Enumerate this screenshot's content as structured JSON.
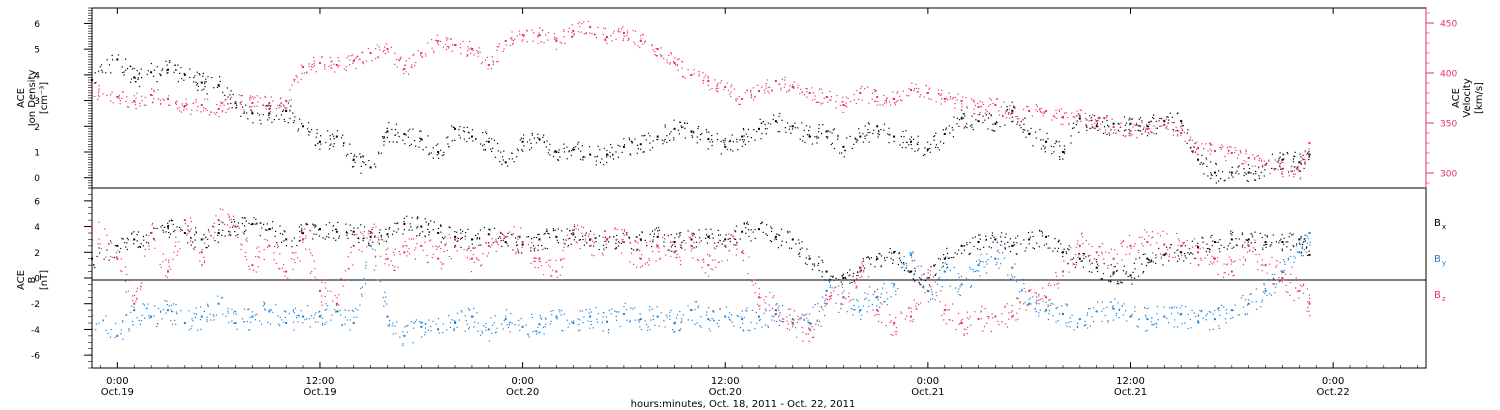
{
  "colors": {
    "density": "#000000",
    "velocity": "#e8315f",
    "bx": "#000000",
    "by": "#1a7fd6",
    "bz": "#e8315f"
  },
  "time_axis": {
    "label": "hours:minutes, Oct. 18, 2011 - Oct. 22, 2011",
    "range_hours": [
      -1.5,
      77.5
    ],
    "ticks": [
      {
        "hour": 0,
        "time": "0:00",
        "date": "Oct.19"
      },
      {
        "hour": 12,
        "time": "12:00",
        "date": "Oct.19"
      },
      {
        "hour": 24,
        "time": "0:00",
        "date": "Oct.20"
      },
      {
        "hour": 36,
        "time": "12:00",
        "date": "Oct.20"
      },
      {
        "hour": 48,
        "time": "0:00",
        "date": "Oct.21"
      },
      {
        "hour": 60,
        "time": "12:00",
        "date": "Oct.21"
      },
      {
        "hour": 72,
        "time": "0:00",
        "date": "Oct.22"
      }
    ]
  },
  "chart_data": [
    {
      "type": "scatter",
      "title": "",
      "xlabel": "hours:minutes, Oct. 18, 2011 - Oct. 22, 2011",
      "left_axis": {
        "label_lines": [
          "ACE",
          "Ion Density"
        ],
        "unit": "[cm⁻³]",
        "ylim": [
          -0.4,
          6.6
        ],
        "ticks": [
          "0",
          "1",
          "2",
          "3",
          "4",
          "5",
          "6"
        ]
      },
      "right_axis": {
        "label_lines": [
          "ACE",
          "Velocity"
        ],
        "unit": "[km/s]",
        "ylim": [
          285,
          465
        ],
        "ticks": [
          "300",
          "350",
          "400",
          "450"
        ]
      },
      "series": [
        {
          "name": "Ion Density",
          "axis": "left",
          "x_hours": [
            -1.5,
            0,
            1,
            2,
            3,
            4,
            5,
            6,
            7,
            8,
            9,
            10,
            11,
            12,
            13,
            14,
            15,
            16,
            17,
            18,
            19,
            20,
            21,
            22,
            23,
            24,
            25,
            26,
            27,
            28,
            29,
            30,
            31,
            32,
            33,
            34,
            35,
            36,
            37,
            38,
            39,
            40,
            41,
            42,
            43,
            44,
            45,
            46,
            47,
            48,
            49,
            50,
            51,
            52,
            53,
            54,
            55,
            56,
            57,
            58,
            59,
            60,
            61,
            62,
            63,
            64,
            65,
            66,
            67,
            68,
            69,
            70,
            70.6
          ],
          "values": [
            3.8,
            4.6,
            3.9,
            4.1,
            4.2,
            4.0,
            3.7,
            3.6,
            2.9,
            2.5,
            2.5,
            2.6,
            2.0,
            1.4,
            1.6,
            0.7,
            0.4,
            1.8,
            1.7,
            1.5,
            1.0,
            1.9,
            1.6,
            1.4,
            0.6,
            1.4,
            1.5,
            1.0,
            1.1,
            0.9,
            0.9,
            1.2,
            1.3,
            1.6,
            1.9,
            1.8,
            1.5,
            1.2,
            1.6,
            1.9,
            2.2,
            2.0,
            1.6,
            1.8,
            1.2,
            1.6,
            2.0,
            1.6,
            1.4,
            1.1,
            1.7,
            2.3,
            2.2,
            2.1,
            2.6,
            1.7,
            1.4,
            1.0,
            2.3,
            2.0,
            2.1,
            2.1,
            2.0,
            2.2,
            2.2,
            0.7,
            0.2,
            0.2,
            0.2,
            0.5,
            0.7,
            0.6,
            0.9
          ]
        },
        {
          "name": "Velocity",
          "axis": "right",
          "x_hours": [
            -1.5,
            0,
            1,
            2,
            3,
            4,
            5,
            6,
            7,
            8,
            9,
            10,
            11,
            12,
            13,
            14,
            15,
            16,
            17,
            18,
            19,
            20,
            21,
            22,
            23,
            24,
            25,
            26,
            27,
            28,
            29,
            30,
            31,
            32,
            33,
            34,
            35,
            36,
            37,
            38,
            39,
            40,
            41,
            42,
            43,
            44,
            45,
            46,
            47,
            48,
            49,
            50,
            51,
            52,
            53,
            54,
            55,
            56,
            57,
            58,
            59,
            60,
            61,
            62,
            63,
            64,
            65,
            66,
            67,
            68,
            69,
            70,
            70.6
          ],
          "values": [
            382,
            376,
            372,
            378,
            374,
            367,
            368,
            364,
            371,
            370,
            370,
            372,
            406,
            410,
            408,
            412,
            420,
            424,
            404,
            420,
            432,
            428,
            424,
            408,
            432,
            438,
            438,
            432,
            442,
            446,
            436,
            440,
            432,
            424,
            410,
            398,
            392,
            386,
            374,
            382,
            392,
            386,
            380,
            376,
            368,
            380,
            376,
            374,
            383,
            380,
            374,
            372,
            366,
            368,
            360,
            362,
            362,
            356,
            356,
            352,
            346,
            342,
            344,
            348,
            340,
            325,
            322,
            320,
            315,
            308,
            304,
            302,
            330
          ]
        }
      ]
    },
    {
      "type": "scatter",
      "title": "",
      "xlabel": "hours:minutes, Oct. 18, 2011 - Oct. 22, 2011",
      "left_axis": {
        "label_lines": [
          "ACE",
          "B"
        ],
        "unit": "[nT]",
        "ylim": [
          -7,
          7
        ],
        "ticks": [
          "-6",
          "-4",
          "-2",
          "0",
          "2",
          "4",
          "6"
        ]
      },
      "series": [
        {
          "name": "Bx",
          "label_main": "B",
          "label_sub": "x",
          "x_hours": [
            -1.5,
            0,
            1,
            2,
            3,
            4,
            5,
            6,
            7,
            8,
            9,
            10,
            11,
            12,
            13,
            14,
            15,
            16,
            17,
            18,
            19,
            20,
            21,
            22,
            23,
            24,
            25,
            26,
            27,
            28,
            29,
            30,
            31,
            32,
            33,
            34,
            35,
            36,
            37,
            38,
            39,
            40,
            41,
            42,
            43,
            44,
            45,
            46,
            47,
            48,
            49,
            50,
            51,
            52,
            53,
            54,
            55,
            56,
            57,
            58,
            59,
            60,
            61,
            62,
            63,
            64,
            65,
            66,
            67,
            68,
            69,
            70,
            70.6
          ],
          "values": [
            1.5,
            2.5,
            3.0,
            3.5,
            4.0,
            3.5,
            3.0,
            3.5,
            4.0,
            4.2,
            3.8,
            3.0,
            3.5,
            3.8,
            3.6,
            3.6,
            3.2,
            3.4,
            4.2,
            4.0,
            3.5,
            3.2,
            3.0,
            3.4,
            2.8,
            2.6,
            3.0,
            3.2,
            3.4,
            3.0,
            3.0,
            2.8,
            3.0,
            3.2,
            2.8,
            3.0,
            3.2,
            3.0,
            3.6,
            3.8,
            3.2,
            3.0,
            1.5,
            0.5,
            0.0,
            0.8,
            1.5,
            2.0,
            0.5,
            0.0,
            1.5,
            2.5,
            2.8,
            3.0,
            2.5,
            3.0,
            3.2,
            2.0,
            1.5,
            0.8,
            0.4,
            0.2,
            1.5,
            1.8,
            2.0,
            2.4,
            2.8,
            3.0,
            3.0,
            2.8,
            2.8,
            3.0,
            1.8
          ]
        },
        {
          "name": "By",
          "label_main": "B",
          "label_sub": "y",
          "x_hours": [
            -1.5,
            0,
            1,
            2,
            3,
            4,
            5,
            6,
            7,
            8,
            9,
            10,
            11,
            12,
            13,
            14,
            15,
            16,
            17,
            18,
            19,
            20,
            21,
            22,
            23,
            24,
            25,
            26,
            27,
            28,
            29,
            30,
            31,
            32,
            33,
            34,
            35,
            36,
            37,
            38,
            39,
            40,
            41,
            42,
            43,
            44,
            45,
            46,
            47,
            48,
            49,
            50,
            51,
            52,
            53,
            54,
            55,
            56,
            57,
            58,
            59,
            60,
            61,
            62,
            63,
            64,
            65,
            66,
            67,
            68,
            69,
            70,
            70.6
          ],
          "values": [
            -3.0,
            -4.5,
            -2.5,
            -3.0,
            -2.5,
            -3.5,
            -3.0,
            -2.0,
            -3.5,
            -3.0,
            -2.6,
            -3.5,
            -3.0,
            -3.0,
            -2.6,
            -3.5,
            2.5,
            -3.0,
            -4.5,
            -3.8,
            -4.0,
            -3.5,
            -3.0,
            -4.0,
            -3.2,
            -3.8,
            -3.6,
            -3.0,
            -3.5,
            -3.0,
            -3.4,
            -2.8,
            -3.2,
            -3.0,
            -3.5,
            -2.5,
            -3.2,
            -3.0,
            -3.2,
            -3.0,
            -2.8,
            -3.2,
            -3.5,
            -1.0,
            -1.5,
            -2.5,
            -1.5,
            -0.5,
            1.8,
            -1.0,
            0.5,
            -0.5,
            1.0,
            1.5,
            0.8,
            -2.0,
            -2.5,
            -2.8,
            -3.2,
            -2.6,
            -2.4,
            -3.0,
            -3.2,
            -3.0,
            -2.8,
            -3.4,
            -3.2,
            -2.5,
            -2.0,
            -1.0,
            0.5,
            2.0,
            3.5
          ]
        },
        {
          "name": "Bz",
          "label_main": "B",
          "label_sub": "z",
          "x_hours": [
            -1.5,
            0,
            1,
            2,
            3,
            4,
            5,
            6,
            7,
            8,
            9,
            10,
            11,
            12,
            13,
            14,
            15,
            16,
            17,
            18,
            19,
            20,
            21,
            22,
            23,
            24,
            25,
            26,
            27,
            28,
            29,
            30,
            31,
            32,
            33,
            34,
            35,
            36,
            37,
            38,
            39,
            40,
            41,
            42,
            43,
            44,
            45,
            46,
            47,
            48,
            49,
            50,
            51,
            52,
            53,
            54,
            55,
            56,
            57,
            58,
            59,
            60,
            61,
            62,
            63,
            64,
            65,
            66,
            67,
            68,
            69,
            70,
            70.6
          ],
          "values": [
            4.0,
            1.5,
            -2.0,
            3.5,
            0.5,
            4.5,
            2.0,
            4.5,
            4.0,
            1.0,
            2.5,
            0.5,
            3.0,
            -1.0,
            -2.0,
            2.5,
            3.5,
            1.5,
            2.0,
            2.5,
            1.5,
            3.0,
            1.5,
            2.5,
            3.2,
            2.8,
            1.5,
            0.5,
            3.5,
            2.5,
            3.0,
            2.8,
            1.5,
            2.5,
            2.0,
            2.5,
            1.0,
            2.5,
            2.0,
            -1.5,
            -2.5,
            -3.5,
            -4.0,
            -2.0,
            -1.5,
            0.5,
            -2.5,
            -3.5,
            -3.0,
            0.0,
            -2.5,
            -3.5,
            -3.2,
            -3.0,
            -3.0,
            -1.0,
            -1.5,
            0.5,
            2.5,
            2.0,
            1.5,
            2.5,
            2.8,
            2.6,
            2.5,
            2.0,
            1.5,
            0.5,
            2.5,
            1.0,
            0.0,
            -1.0,
            -2.0
          ]
        }
      ]
    }
  ]
}
